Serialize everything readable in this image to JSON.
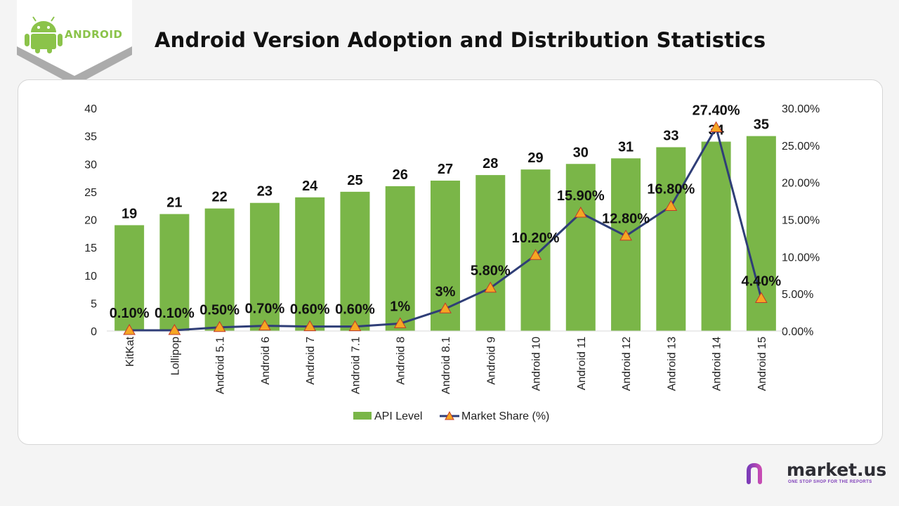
{
  "header": {
    "title": "Android Version Adoption and Distribution Statistics",
    "logo_text": "ANDROID",
    "logo_icon": "android-robot-icon"
  },
  "brand": {
    "name": "market.us",
    "tagline": "ONE STOP SHOP FOR THE REPORTS",
    "icon": "market-us-logo-icon"
  },
  "colors": {
    "bar": "#7ab648",
    "line": "#2f3e77",
    "marker_fill": "#f5a623",
    "marker_stroke": "#c0392b"
  },
  "chart_data": {
    "type": "bar",
    "categories": [
      "KitKat",
      "Lollipop",
      "Android 5.1",
      "Android 6",
      "Android 7",
      "Android 7.1",
      "Android 8",
      "Android 8.1",
      "Android 9",
      "Android 10",
      "Android 11",
      "Android 12",
      "Android 13",
      "Android 14",
      "Android 15"
    ],
    "series": [
      {
        "name": "API Level",
        "type": "bar",
        "axis": "left",
        "values": [
          19,
          21,
          22,
          23,
          24,
          25,
          26,
          27,
          28,
          29,
          30,
          31,
          33,
          34,
          35
        ],
        "labels": [
          "19",
          "21",
          "22",
          "23",
          "24",
          "25",
          "26",
          "27",
          "28",
          "29",
          "30",
          "31",
          "33",
          "34",
          "35"
        ]
      },
      {
        "name": "Market Share (%)",
        "type": "line",
        "axis": "right",
        "values": [
          0.1,
          0.1,
          0.5,
          0.7,
          0.6,
          0.6,
          1,
          3,
          5.8,
          10.2,
          15.9,
          12.8,
          16.8,
          27.4,
          4.4
        ],
        "labels": [
          "0.10%",
          "0.10%",
          "0.50%",
          "0.70%",
          "0.60%",
          "0.60%",
          "1%",
          "3%",
          "5.80%",
          "10.20%",
          "15.90%",
          "12.80%",
          "16.80%",
          "27.40%",
          "4.40%"
        ]
      }
    ],
    "ylim": [
      0,
      40
    ],
    "yticks": [
      "0",
      "5",
      "10",
      "15",
      "20",
      "25",
      "30",
      "35",
      "40"
    ],
    "y2lim": [
      0,
      30
    ],
    "y2ticks": [
      "0.00%",
      "5.00%",
      "10.00%",
      "15.00%",
      "20.00%",
      "25.00%",
      "30.00%"
    ],
    "grid": false,
    "legend_position": "bottom"
  }
}
